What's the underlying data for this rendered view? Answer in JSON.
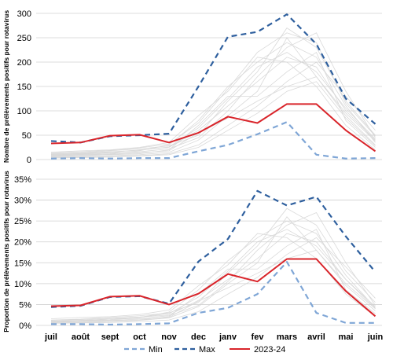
{
  "months": [
    "juil",
    "août",
    "sept",
    "oct",
    "nov",
    "dec",
    "janv",
    "fev",
    "mars",
    "avril",
    "mai",
    "juin"
  ],
  "legend": {
    "min_label": "Min",
    "max_label": "Max",
    "current_label": "2023-24"
  },
  "colors": {
    "min": "#7fa6d6",
    "max": "#2e5f9e",
    "current": "#d9242a",
    "background_seasons": "#d9d9d9",
    "grid": "#d0d0d0"
  },
  "chart_data": [
    {
      "type": "line",
      "ylabel": "Nombre de prélèvements positifs  pour rotavirus",
      "x": [
        "juil",
        "août",
        "sept",
        "oct",
        "nov",
        "dec",
        "janv",
        "fev",
        "mars",
        "avril",
        "mai",
        "juin"
      ],
      "ylim": [
        0,
        300
      ],
      "yticks": [
        "0",
        "50",
        "100",
        "150",
        "200",
        "250",
        "300"
      ],
      "grid": true,
      "series": [
        {
          "name": "Min",
          "values": [
            2,
            3,
            2,
            3,
            3,
            17,
            30,
            52,
            77,
            10,
            2,
            3
          ]
        },
        {
          "name": "Max",
          "values": [
            38,
            35,
            48,
            50,
            53,
            150,
            252,
            262,
            298,
            237,
            125,
            73
          ]
        },
        {
          "name": "2023-24",
          "values": [
            33,
            35,
            49,
            51,
            35,
            55,
            88,
            75,
            114,
            114,
            60,
            17
          ]
        }
      ],
      "background_seasons": [
        [
          10,
          12,
          15,
          20,
          25,
          60,
          110,
          160,
          210,
          190,
          100,
          40
        ],
        [
          5,
          6,
          8,
          10,
          15,
          40,
          90,
          140,
          250,
          170,
          90,
          30
        ],
        [
          8,
          10,
          12,
          18,
          30,
          80,
          150,
          200,
          240,
          210,
          110,
          35
        ],
        [
          12,
          14,
          18,
          22,
          28,
          50,
          120,
          180,
          270,
          230,
          120,
          50
        ],
        [
          6,
          8,
          10,
          12,
          20,
          70,
          130,
          130,
          180,
          220,
          80,
          25
        ],
        [
          15,
          18,
          20,
          25,
          35,
          90,
          140,
          210,
          200,
          150,
          70,
          20
        ],
        [
          4,
          5,
          6,
          8,
          12,
          30,
          70,
          110,
          160,
          200,
          130,
          60
        ],
        [
          9,
          11,
          14,
          16,
          22,
          45,
          100,
          170,
          230,
          260,
          140,
          45
        ],
        [
          7,
          9,
          11,
          14,
          18,
          55,
          85,
          120,
          150,
          170,
          95,
          38
        ],
        [
          11,
          13,
          16,
          19,
          26,
          65,
          125,
          190,
          220,
          180,
          105,
          42
        ],
        [
          3,
          4,
          5,
          7,
          10,
          25,
          60,
          95,
          140,
          160,
          85,
          28
        ],
        [
          14,
          16,
          19,
          24,
          32,
          75,
          145,
          220,
          260,
          240,
          115,
          48
        ]
      ]
    },
    {
      "type": "line",
      "ylabel": "Proportion de prélèvements positifs  pour rotavirus",
      "x": [
        "juil",
        "août",
        "sept",
        "oct",
        "nov",
        "dec",
        "janv",
        "fev",
        "mars",
        "avril",
        "mai",
        "juin"
      ],
      "ylim": [
        0,
        35
      ],
      "yticks": [
        "0%",
        "5%",
        "10%",
        "15%",
        "20%",
        "25%",
        "30%",
        "35%"
      ],
      "grid": true,
      "series": [
        {
          "name": "Min",
          "values": [
            0.3,
            0.3,
            0.2,
            0.3,
            0.5,
            3.0,
            4.2,
            7.5,
            15.2,
            3.0,
            0.6,
            0.6
          ]
        },
        {
          "name": "Max",
          "values": [
            4.4,
            4.7,
            6.8,
            7.0,
            5.2,
            15.3,
            20.7,
            32.2,
            28.7,
            30.8,
            21.3,
            12.8
          ]
        },
        {
          "name": "2023-24",
          "values": [
            4.6,
            4.8,
            6.9,
            7.1,
            5.0,
            7.6,
            12.3,
            10.5,
            15.9,
            15.9,
            8.2,
            2.2
          ]
        }
      ],
      "background_seasons": [
        [
          1.0,
          1.2,
          1.5,
          2.0,
          2.5,
          6.0,
          11.0,
          16.0,
          22.0,
          20.0,
          11.0,
          4.0
        ],
        [
          0.6,
          0.7,
          0.9,
          1.2,
          1.8,
          4.5,
          10.0,
          15.0,
          26.0,
          18.0,
          9.5,
          3.5
        ],
        [
          0.9,
          1.1,
          1.3,
          1.9,
          3.2,
          8.5,
          15.5,
          21.0,
          25.0,
          22.0,
          12.0,
          4.2
        ],
        [
          1.3,
          1.5,
          1.9,
          2.3,
          3.0,
          5.5,
          12.5,
          19.0,
          28.0,
          24.0,
          13.0,
          5.5
        ],
        [
          0.7,
          0.9,
          1.1,
          1.3,
          2.1,
          7.5,
          13.5,
          13.5,
          19.0,
          23.0,
          8.5,
          2.8
        ],
        [
          1.6,
          1.9,
          2.1,
          2.6,
          3.7,
          9.5,
          14.5,
          22.0,
          21.0,
          16.0,
          7.5,
          2.2
        ],
        [
          0.5,
          0.6,
          0.7,
          0.9,
          1.3,
          3.3,
          7.5,
          11.5,
          17.0,
          21.0,
          14.0,
          6.5
        ],
        [
          1.0,
          1.2,
          1.5,
          1.7,
          2.3,
          4.8,
          10.5,
          18.0,
          24.0,
          27.0,
          15.0,
          4.8
        ],
        [
          0.8,
          1.0,
          1.2,
          1.5,
          1.9,
          5.8,
          9.0,
          12.5,
          16.0,
          18.0,
          10.0,
          4.0
        ],
        [
          1.2,
          1.4,
          1.7,
          2.0,
          2.8,
          6.8,
          13.0,
          20.0,
          23.0,
          19.0,
          11.0,
          4.5
        ]
      ]
    }
  ]
}
